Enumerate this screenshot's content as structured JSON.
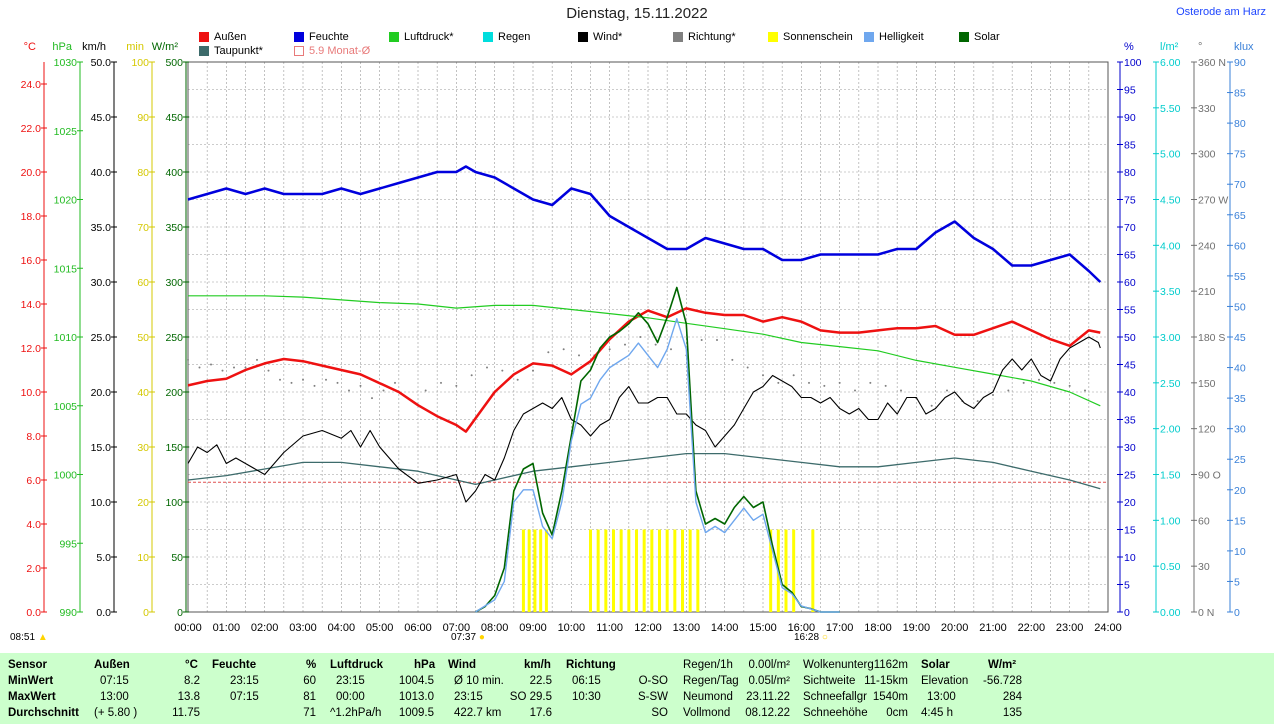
{
  "header": {
    "title": "Dienstag, 15.11.2022",
    "station": "Osterode am Harz"
  },
  "legend": [
    {
      "label": "Außen",
      "color": "#ee1111"
    },
    {
      "label": "Feuchte",
      "color": "#0000dd"
    },
    {
      "label": "Luftdruck*",
      "color": "#22cc22"
    },
    {
      "label": "Regen",
      "color": "#00dddd"
    },
    {
      "label": "Wind*",
      "color": "#000000"
    },
    {
      "label": "Richtung*",
      "color": "#808080"
    },
    {
      "label": "Sonnenschein",
      "color": "#ffff00"
    },
    {
      "label": "Helligkeit",
      "color": "#6fa7ee"
    },
    {
      "label": "Solar",
      "color": "#006600"
    },
    {
      "label": "Taupunkt*",
      "color": "#3d6b6b"
    },
    {
      "label": "5.9 Monat-Ø",
      "color": "#e87a7a"
    }
  ],
  "axes": {
    "temp": {
      "unit": "°C",
      "color": "#ee1111",
      "ticks": [
        "0.0",
        "2.0",
        "4.0",
        "6.0",
        "8.0",
        "10.0",
        "12.0",
        "14.0",
        "16.0",
        "18.0",
        "20.0",
        "22.0",
        "24.0"
      ]
    },
    "pressure": {
      "unit": "hPa",
      "color": "#22bb22",
      "ticks": [
        "990",
        "995",
        "1000",
        "1005",
        "1010",
        "1015",
        "1020",
        "1025",
        "1030"
      ]
    },
    "wind": {
      "unit": "km/h",
      "color": "#000000",
      "ticks": [
        "0.0",
        "5.0",
        "10.0",
        "15.0",
        "20.0",
        "25.0",
        "30.0",
        "35.0",
        "40.0",
        "45.0",
        "50.0"
      ]
    },
    "minutes": {
      "unit": "min",
      "color": "#d4c800",
      "ticks": [
        "0",
        "10",
        "20",
        "30",
        "40",
        "50",
        "60",
        "70",
        "80",
        "90",
        "100"
      ]
    },
    "solar": {
      "unit": "W/m²",
      "color": "#006600",
      "ticks": [
        "0",
        "50",
        "100",
        "150",
        "200",
        "250",
        "300",
        "350",
        "400",
        "450",
        "500"
      ]
    },
    "humidity": {
      "unit": "%",
      "color": "#0000cc",
      "ticks": [
        "0",
        "5",
        "10",
        "15",
        "20",
        "25",
        "30",
        "35",
        "40",
        "45",
        "50",
        "55",
        "60",
        "65",
        "70",
        "75",
        "80",
        "85",
        "90",
        "95",
        "100"
      ]
    },
    "rain": {
      "unit": "l/m²",
      "color": "#00cccc",
      "ticks": [
        "0.00",
        "0.50",
        "1.00",
        "1.50",
        "2.00",
        "2.50",
        "3.00",
        "3.50",
        "4.00",
        "4.50",
        "5.00",
        "5.50",
        "6.00"
      ]
    },
    "direction": {
      "unit": "°",
      "color": "#707070",
      "ticks": [
        "0 N",
        "30",
        "60",
        "90 O",
        "120",
        "150",
        "180 S",
        "210",
        "240",
        "270 W",
        "300",
        "330",
        "360 N"
      ]
    },
    "lux": {
      "unit": "klux",
      "color": "#3a80d8",
      "ticks": [
        "0",
        "5",
        "10",
        "15",
        "20",
        "25",
        "30",
        "35",
        "40",
        "45",
        "50",
        "55",
        "60",
        "65",
        "70",
        "75",
        "80",
        "85",
        "90"
      ]
    }
  },
  "chart_data": {
    "type": "line",
    "x_labels": [
      "00:00",
      "01:00",
      "02:00",
      "03:00",
      "04:00",
      "05:00",
      "06:00",
      "07:00",
      "08:00",
      "09:00",
      "10:00",
      "11:00",
      "12:00",
      "13:00",
      "14:00",
      "15:00",
      "16:00",
      "17:00",
      "18:00",
      "19:00",
      "20:00",
      "21:00",
      "22:00",
      "23:00",
      "24:00"
    ],
    "xlim_hours": [
      0,
      24
    ],
    "grid": true,
    "series": [
      {
        "name": "Außen",
        "axis": "temp",
        "color": "#ee1111",
        "x": [
          0,
          0.5,
          1,
          1.5,
          2,
          2.5,
          3,
          3.5,
          4,
          4.5,
          5,
          5.5,
          6,
          6.5,
          7,
          7.25,
          7.5,
          8,
          8.5,
          9,
          9.5,
          10,
          10.5,
          11,
          11.5,
          12,
          12.5,
          13,
          13.5,
          14,
          14.5,
          15,
          15.5,
          16,
          16.5,
          17,
          17.5,
          18,
          18.5,
          19,
          19.5,
          20,
          20.5,
          21,
          21.5,
          22,
          22.5,
          23,
          23.5,
          23.8
        ],
        "y": [
          10.3,
          10.5,
          10.6,
          11.0,
          11.3,
          11.5,
          11.4,
          11.2,
          11.0,
          10.8,
          10.4,
          10.0,
          9.4,
          8.9,
          8.5,
          8.2,
          8.8,
          10.0,
          10.8,
          11.3,
          11.2,
          10.8,
          11.4,
          12.4,
          13.2,
          13.7,
          13.4,
          13.8,
          13.6,
          13.5,
          13.5,
          13.2,
          13.4,
          13.2,
          12.8,
          12.7,
          12.7,
          12.8,
          12.9,
          12.9,
          13.0,
          12.6,
          12.6,
          12.9,
          13.2,
          12.8,
          12.4,
          12.1,
          12.8,
          12.7
        ]
      },
      {
        "name": "Taupunkt*",
        "axis": "temp",
        "color": "#3d6b6b",
        "x": [
          0,
          1,
          2,
          3,
          4,
          5,
          6,
          7,
          7.5,
          8,
          9,
          10,
          11,
          12,
          13,
          14,
          15,
          16,
          17,
          18,
          19,
          20,
          21,
          22,
          23,
          23.8
        ],
        "y": [
          6.0,
          6.2,
          6.5,
          6.8,
          6.8,
          6.6,
          6.4,
          6.0,
          5.8,
          6.0,
          6.4,
          6.6,
          6.8,
          7.0,
          7.2,
          7.2,
          7.0,
          6.8,
          6.6,
          6.6,
          6.8,
          7.0,
          6.8,
          6.4,
          6.0,
          5.6
        ]
      },
      {
        "name": "Feuchte",
        "axis": "humidity",
        "color": "#0000dd",
        "x": [
          0,
          0.5,
          1,
          1.5,
          2,
          2.5,
          3,
          3.5,
          4,
          4.5,
          5,
          5.5,
          6,
          6.5,
          7,
          7.25,
          7.5,
          8,
          8.5,
          9,
          9.5,
          10,
          10.5,
          11,
          11.5,
          12,
          12.5,
          13,
          13.5,
          14,
          14.5,
          15,
          15.5,
          16,
          16.5,
          17,
          17.5,
          18,
          18.5,
          19,
          19.5,
          20,
          20.5,
          21,
          21.5,
          22,
          22.5,
          23,
          23.5,
          23.8
        ],
        "y": [
          75,
          76,
          77,
          76,
          77,
          76,
          76,
          76,
          77,
          76,
          77,
          78,
          79,
          80,
          80,
          81,
          80,
          79,
          77,
          75,
          74,
          77,
          76,
          72,
          70,
          68,
          66,
          66,
          68,
          67,
          66,
          66,
          64,
          64,
          65,
          65,
          65,
          65,
          66,
          66,
          69,
          71,
          68,
          66,
          63,
          63,
          64,
          65,
          62,
          60
        ]
      },
      {
        "name": "Luftdruck*",
        "axis": "pressure",
        "color": "#22cc22",
        "x": [
          0,
          1,
          2,
          3,
          4,
          5,
          6,
          7,
          8,
          9,
          10,
          11,
          12,
          13,
          14,
          15,
          16,
          17,
          18,
          19,
          20,
          21,
          22,
          23,
          23.8
        ],
        "y": [
          1013.0,
          1013.0,
          1013.0,
          1012.9,
          1012.7,
          1012.5,
          1012.4,
          1012.1,
          1012.3,
          1012.3,
          1012.0,
          1011.7,
          1011.4,
          1011.0,
          1010.6,
          1010.2,
          1009.6,
          1009.3,
          1009.0,
          1008.3,
          1007.8,
          1007.3,
          1006.8,
          1006.0,
          1005.0
        ]
      },
      {
        "name": "Wind*",
        "axis": "wind",
        "color": "#000000",
        "x": [
          0,
          0.25,
          0.5,
          0.75,
          1,
          1.25,
          1.5,
          2,
          2.5,
          3,
          3.5,
          4,
          4.25,
          4.5,
          4.75,
          5,
          5.5,
          6,
          6.5,
          7,
          7.25,
          7.5,
          7.75,
          8,
          8.25,
          8.5,
          8.75,
          9,
          9.25,
          9.5,
          9.75,
          10,
          10.25,
          10.5,
          10.75,
          11,
          11.25,
          11.5,
          11.75,
          12,
          12.25,
          12.5,
          12.75,
          13,
          13.25,
          13.5,
          13.75,
          14,
          14.25,
          14.5,
          14.75,
          15,
          15.25,
          15.5,
          15.75,
          16,
          16.25,
          16.5,
          16.75,
          17,
          17.25,
          17.5,
          17.75,
          18,
          18.25,
          18.5,
          18.75,
          19,
          19.25,
          19.5,
          19.75,
          20,
          20.25,
          20.5,
          20.75,
          21,
          21.25,
          21.5,
          21.75,
          22,
          22.25,
          22.5,
          22.75,
          23,
          23.25,
          23.5,
          23.75,
          23.8
        ],
        "y": [
          13.5,
          15.0,
          14.5,
          15.2,
          13.5,
          14.0,
          13.5,
          12.5,
          14.5,
          16.0,
          16.5,
          15.8,
          16.5,
          15.0,
          16.5,
          15.0,
          13.0,
          11.7,
          12.0,
          12.5,
          10.0,
          11.0,
          12.5,
          12.0,
          14.0,
          16.5,
          18.0,
          18.5,
          19.0,
          18.5,
          19.5,
          17.5,
          17.0,
          16.0,
          17.0,
          17.5,
          19.5,
          20.5,
          19.0,
          19.0,
          19.5,
          19.5,
          18.0,
          18.0,
          17.0,
          16.5,
          15.0,
          16.0,
          17.0,
          18.5,
          20.0,
          20.5,
          21.5,
          21.0,
          20.5,
          19.5,
          19.5,
          19.0,
          19.5,
          18.5,
          18.0,
          18.5,
          17.5,
          17.5,
          19.0,
          18.0,
          19.5,
          19.5,
          18.0,
          18.5,
          19.5,
          20.0,
          19.0,
          18.5,
          19.5,
          20.0,
          22.0,
          23.0,
          22.0,
          23.0,
          21.5,
          21.0,
          23.0,
          24.0,
          24.5,
          25.0,
          24.5,
          24.0
        ]
      },
      {
        "name": "Solar",
        "axis": "solar",
        "color": "#006600",
        "x": [
          7.5,
          7.75,
          8,
          8.25,
          8.5,
          8.75,
          9,
          9.25,
          9.5,
          9.75,
          10,
          10.25,
          10.5,
          10.75,
          11,
          11.25,
          11.5,
          11.75,
          12,
          12.25,
          12.5,
          12.75,
          13,
          13.25,
          13.5,
          13.75,
          14,
          14.25,
          14.5,
          14.75,
          15,
          15.25,
          15.5,
          15.75,
          16,
          16.25,
          16.5,
          16.75,
          17
        ],
        "y": [
          0,
          5,
          15,
          40,
          110,
          130,
          135,
          90,
          70,
          110,
          160,
          210,
          220,
          240,
          250,
          255,
          262,
          272,
          262,
          245,
          268,
          295,
          262,
          110,
          80,
          85,
          80,
          95,
          105,
          95,
          100,
          60,
          25,
          18,
          5,
          3,
          0,
          0,
          0
        ]
      },
      {
        "name": "Helligkeit",
        "axis": "lux",
        "color": "#6fa7ee",
        "x": [
          7.5,
          7.75,
          8,
          8.25,
          8.5,
          8.75,
          9,
          9.25,
          9.5,
          9.75,
          10,
          10.25,
          10.5,
          10.75,
          11,
          11.25,
          11.5,
          11.75,
          12,
          12.25,
          12.5,
          12.75,
          13,
          13.25,
          13.5,
          13.75,
          14,
          14.25,
          14.5,
          14.75,
          15,
          15.25,
          15.5,
          15.75,
          16,
          16.25,
          16.5,
          16.75,
          17
        ],
        "y": [
          0,
          1,
          2,
          5,
          18,
          20,
          20,
          14,
          12,
          18,
          28,
          34,
          35,
          38,
          40,
          41,
          42,
          44,
          42,
          40,
          43,
          48,
          43,
          18,
          13,
          14,
          13,
          15,
          17,
          15,
          16,
          10,
          4,
          3,
          1,
          0.5,
          0,
          0,
          0
        ]
      }
    ],
    "monthly_average_temp": 5.9,
    "sunshine_bars": {
      "axis": "minutes",
      "color": "#ffff00",
      "x": [
        8.75,
        8.9,
        9.05,
        9.2,
        9.35,
        10.5,
        10.7,
        10.9,
        11.1,
        11.3,
        11.5,
        11.7,
        11.9,
        12.1,
        12.3,
        12.5,
        12.7,
        12.9,
        13.1,
        13.3,
        15.2,
        15.4,
        15.6,
        15.8,
        16.3
      ],
      "y": [
        15,
        15,
        15,
        15,
        15,
        15,
        15,
        15,
        15,
        15,
        15,
        15,
        15,
        15,
        15,
        15,
        15,
        15,
        15,
        15,
        15,
        15,
        15,
        15,
        15
      ]
    },
    "direction_points": {
      "axis": "direction",
      "color": "#808080",
      "x": [
        0,
        0.3,
        0.6,
        0.9,
        1.2,
        1.5,
        1.8,
        2.1,
        2.4,
        2.7,
        3.0,
        3.3,
        3.6,
        3.9,
        4.2,
        4.5,
        4.8,
        5.1,
        5.4,
        6.2,
        6.6,
        7.0,
        7.4,
        7.8,
        8.2,
        8.6,
        9.0,
        9.4,
        9.8,
        10.2,
        10.6,
        11.0,
        11.4,
        11.8,
        12.2,
        12.6,
        13.0,
        13.4,
        13.8,
        14.2,
        14.6,
        15.0,
        15.4,
        15.8,
        16.2,
        16.6,
        17.0,
        17.4,
        17.8,
        18.2,
        18.6,
        19.0,
        19.4,
        19.8,
        20.2,
        20.6,
        21.0,
        21.4,
        21.8,
        22.2,
        22.6,
        23.0,
        23.4
      ],
      "y": [
        165,
        160,
        162,
        158,
        160,
        160,
        165,
        158,
        152,
        150,
        152,
        148,
        152,
        150,
        145,
        148,
        140,
        145,
        150,
        145,
        150,
        148,
        155,
        160,
        158,
        152,
        158,
        170,
        172,
        168,
        168,
        172,
        175,
        180,
        175,
        172,
        168,
        178,
        178,
        165,
        160,
        155,
        150,
        155,
        150,
        148,
        150,
        145,
        150,
        148,
        145,
        140,
        135,
        145,
        138,
        138,
        142,
        145,
        150,
        152,
        150,
        148,
        145
      ]
    }
  },
  "markers": {
    "sunrise": "07:37",
    "sunset": "16:28",
    "corner_time": "08:51"
  },
  "stats": {
    "headers": [
      "Sensor",
      "Außen",
      "°C",
      "Feuchte",
      "%",
      "Luftdruck",
      "hPa",
      "Wind",
      "km/h",
      "Richtung"
    ],
    "rows": [
      {
        "label": "MinWert",
        "aussen_time": "07:15",
        "aussen_val": "8.2",
        "feuchte_time": "23:15",
        "feuchte_val": "60",
        "druck_time": "23:15",
        "druck_val": "1004.5",
        "wind_label": "Ø 10 min.",
        "wind_val": "22.5",
        "richt_time": "06:15",
        "richt_val": "O-SO"
      },
      {
        "label": "MaxWert",
        "aussen_time": "13:00",
        "aussen_val": "13.8",
        "feuchte_time": "07:15",
        "feuchte_val": "81",
        "druck_time": "00:00",
        "druck_val": "1013.0",
        "wind_label": "23:15",
        "wind_val": "SO 29.5",
        "richt_time": "10:30",
        "richt_val": "S-SW"
      },
      {
        "label": "Durchschnitt",
        "aussen_time": "(+ 5.80 )",
        "aussen_val": "11.75",
        "feuchte_time": "",
        "feuchte_val": "71",
        "druck_time": "^1.2hPa/h",
        "druck_val": "1009.5",
        "wind_label": "422.7 km",
        "wind_val": "17.6",
        "richt_time": "",
        "richt_val": "SO"
      }
    ],
    "rain": [
      {
        "label": "Regen/1h",
        "val": "0.00l/m²"
      },
      {
        "label": "Regen/Tag",
        "val": "0.05l/m²"
      },
      {
        "label": "Neumond",
        "val": "23.11.22"
      },
      {
        "label": "Vollmond",
        "val": "08.12.22"
      }
    ],
    "cloud": [
      {
        "label": "Wolkenunterg",
        "val": "1162m"
      },
      {
        "label": "Sichtweite",
        "val": "11-15km"
      },
      {
        "label": "Schneefallgr",
        "val": "1540m"
      },
      {
        "label": "Schneehöhe",
        "val": "0cm"
      }
    ],
    "solar_header": {
      "label": "Solar",
      "unit": "W/m²"
    },
    "solar": [
      {
        "label": "Elevation",
        "val": "-56.728"
      },
      {
        "label": "13:00",
        "val": "284"
      },
      {
        "label": "4:45 h",
        "val": "135"
      }
    ]
  }
}
